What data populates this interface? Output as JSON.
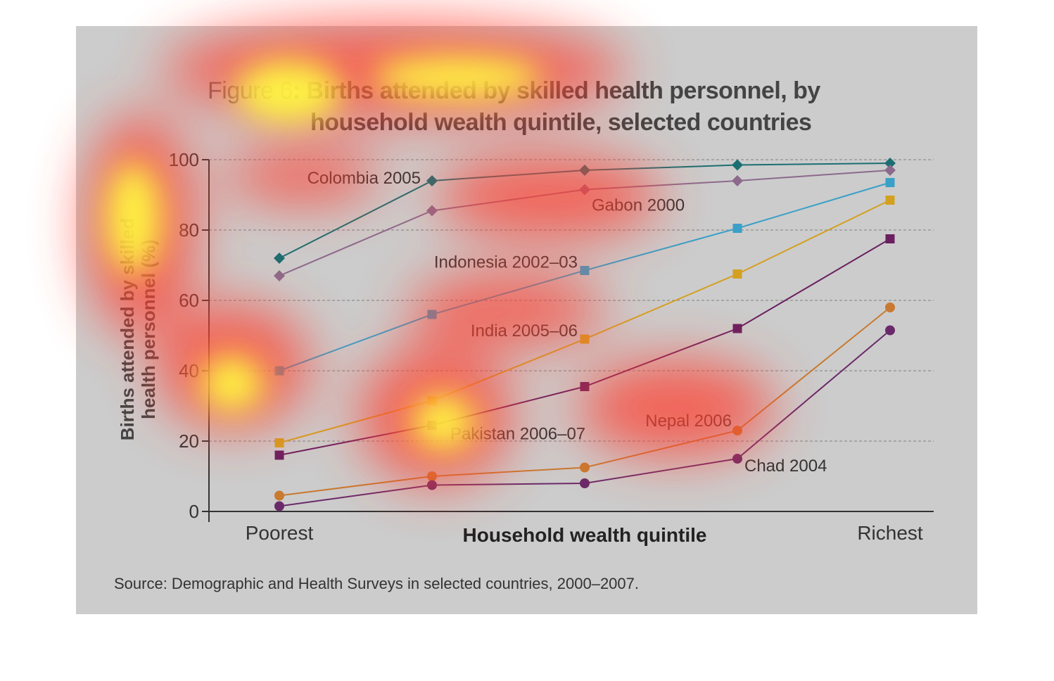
{
  "title": {
    "figure_label": "Figure 6",
    "line1": "Births attended by skilled health personnel, by",
    "line2": "household wealth quintile, selected countries"
  },
  "chart_data": {
    "type": "line",
    "title": "Births attended by skilled health personnel, by household wealth quintile, selected countries",
    "xlabel": "Household wealth quintile",
    "ylabel_line1": "Births attended by skilled",
    "ylabel_line2": "health personnel (%)",
    "categories": [
      "Poorest",
      "",
      "",
      "",
      "Richest"
    ],
    "x_tick_labels": {
      "first": "Poorest",
      "last": "Richest"
    },
    "ylim": [
      0,
      100
    ],
    "yticks": [
      "0",
      "20",
      "40",
      "60",
      "80",
      "100"
    ],
    "grid": true,
    "series": [
      {
        "name": "Colombia 2005",
        "marker": "diamond",
        "color": "#1c6e72",
        "values": [
          72,
          94,
          97,
          98.5,
          99
        ]
      },
      {
        "name": "Gabon 2000",
        "marker": "diamond",
        "color": "#8c6a8c",
        "values": [
          67,
          85.5,
          91.5,
          94,
          97
        ]
      },
      {
        "name": "Indonesia 2002–03",
        "marker": "square",
        "color": "#3aa0c8",
        "values": [
          40,
          56,
          68.5,
          80.5,
          93.5
        ]
      },
      {
        "name": "India 2005–06",
        "marker": "square",
        "color": "#d4a020",
        "values": [
          19.5,
          31.5,
          49,
          67.5,
          88.5
        ]
      },
      {
        "name": "Pakistan 2006–07",
        "marker": "square",
        "color": "#6a2060",
        "values": [
          16,
          24.5,
          35.5,
          52,
          77.5
        ]
      },
      {
        "name": "Nepal 2006",
        "marker": "circle",
        "color": "#c87a30",
        "values": [
          4.5,
          10,
          12.5,
          23,
          58
        ]
      },
      {
        "name": "Chad 2004",
        "marker": "circle",
        "color": "#6a2a6a",
        "values": [
          1.5,
          7.5,
          8,
          15,
          51.5
        ]
      }
    ]
  },
  "source": "Source: Demographic and Health Surveys in selected countries, 2000–2007."
}
